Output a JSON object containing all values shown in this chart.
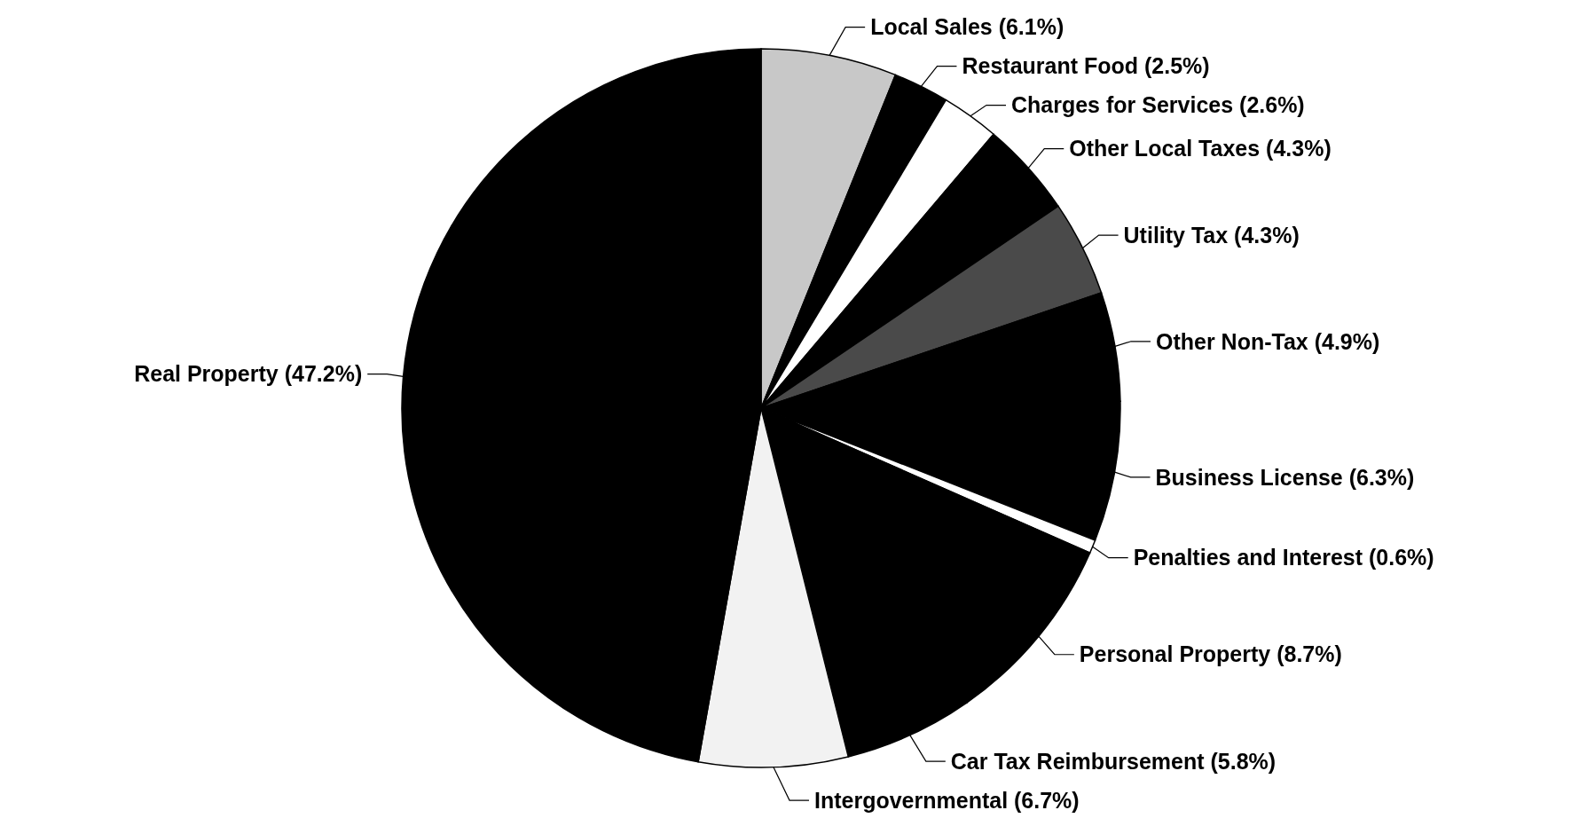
{
  "chart_data": {
    "type": "pie",
    "categories": [
      "Local Sales",
      "Restaurant Food",
      "Charges for Services",
      "Other Local Taxes",
      "Utility Tax",
      "Other Non-Tax",
      "Business License",
      "Penalties and Interest",
      "Personal Property",
      "Car Tax Reimbursement",
      "Intergovernmental",
      "Real Property"
    ],
    "values": [
      6.1,
      2.5,
      2.6,
      4.3,
      4.3,
      4.9,
      6.3,
      0.6,
      8.7,
      5.8,
      6.7,
      47.2
    ],
    "value_labels": [
      "(6.1%)",
      "(2.5%)",
      "(2.6%)",
      "(4.3%)",
      "(4.3%)",
      "(4.9%)",
      "(6.3%)",
      "(0.6%)",
      "(8.7%)",
      "(5.8%)",
      "(6.7%)",
      "(47.2%)"
    ],
    "colors": [
      "#c8c8c8",
      "#000000",
      "#ffffff",
      "#000000",
      "#4a4a4a",
      "#000000",
      "#000000",
      "#ffffff",
      "#000000",
      "#000000",
      "#f2f2f2",
      "#000000"
    ]
  }
}
